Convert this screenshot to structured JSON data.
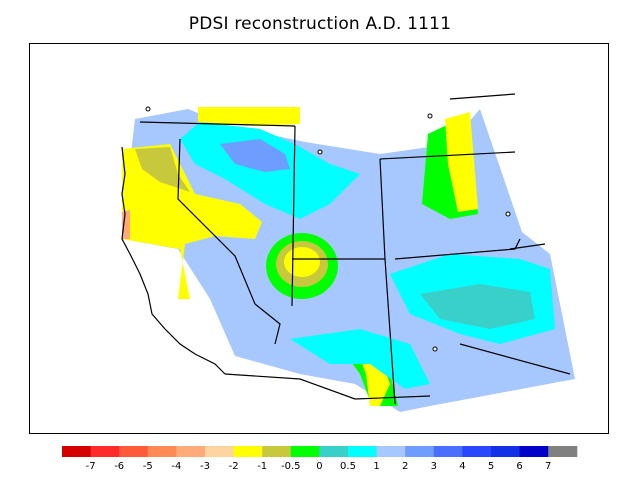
{
  "title": "PDSI reconstruction A.D. 1111",
  "legend": {
    "labels": [
      "-7",
      "-6",
      "-5",
      "-4",
      "-3",
      "-2",
      "-1",
      "-0.5",
      "0",
      "0.5",
      "1",
      "2",
      "3",
      "4",
      "5",
      "6",
      "7"
    ],
    "colors": [
      "#d40000",
      "#ff2a2a",
      "#ff5a3a",
      "#ff8a55",
      "#ffaa77",
      "#ffd4a0",
      "#ffff00",
      "#c8c83c",
      "#00ff00",
      "#38d0c8",
      "#00ffff",
      "#a6c8ff",
      "#6c9dff",
      "#4a6eff",
      "#2a46ff",
      "#1430e6",
      "#0000c8",
      "#808080"
    ]
  },
  "map": {
    "region": "Southwestern United States",
    "zones": [
      {
        "name": "dry-west-coast",
        "value": "-2 to -1"
      },
      {
        "name": "wet-northern-basin",
        "value": "2 to 3"
      },
      {
        "name": "dry-four-corners-center",
        "value": "-1 to 0"
      },
      {
        "name": "dry-eastern-front-range",
        "value": "-1 to 0"
      },
      {
        "name": "wet-southern-plains",
        "value": "0.5 to 2"
      }
    ]
  }
}
